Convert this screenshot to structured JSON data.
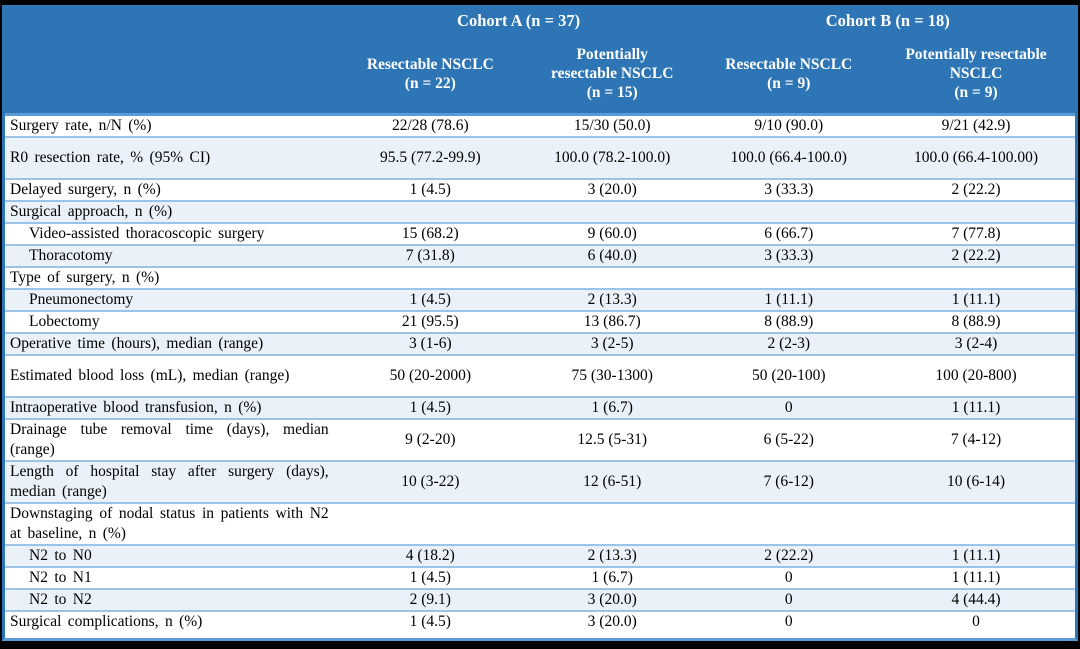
{
  "colors": {
    "header_bg": "#2E75B6",
    "header_text": "#FFFFFF",
    "alt_row_bg": "#EAF1F8",
    "row_divider": "#9CC2E5",
    "outer_side_border": "#2E75B6",
    "header_divider": "#5B9BD5",
    "frame": "#000000",
    "body_text": "#000000"
  },
  "table": {
    "corner_label": "",
    "groups": [
      {
        "label": "Cohort A (n = 37)"
      },
      {
        "label": "Cohort B (n = 18)"
      }
    ],
    "columns": [
      {
        "label": "Resectable NSCLC\n(n = 22)"
      },
      {
        "label": "Potentially\nresectable NSCLC\n(n = 15)"
      },
      {
        "label": "Resectable NSCLC\n(n = 9)"
      },
      {
        "label": "Potentially resectable\nNSCLC\n(n = 9)"
      }
    ],
    "rows": [
      {
        "label": "Surgery rate, n/N (%)",
        "indent": false,
        "tall": false,
        "values": [
          "22/28 (78.6)",
          "15/30 (50.0)",
          "9/10 (90.0)",
          "9/21 (42.9)"
        ]
      },
      {
        "label": "R0 resection rate, % (95% CI)",
        "indent": false,
        "tall": true,
        "values": [
          "95.5 (77.2-99.9)",
          "100.0 (78.2-100.0)",
          "100.0 (66.4-100.0)",
          "100.0 (66.4-100.00)"
        ]
      },
      {
        "label": "Delayed surgery, n (%)",
        "indent": false,
        "tall": false,
        "values": [
          "1 (4.5)",
          "3 (20.0)",
          "3 (33.3)",
          "2 (22.2)"
        ]
      },
      {
        "label": "Surgical approach, n (%)",
        "indent": false,
        "tall": false,
        "values": [
          "",
          "",
          "",
          ""
        ]
      },
      {
        "label": "Video-assisted thoracoscopic surgery",
        "indent": true,
        "tall": false,
        "values": [
          "15 (68.2)",
          "9 (60.0)",
          "6 (66.7)",
          "7 (77.8)"
        ]
      },
      {
        "label": "Thoracotomy",
        "indent": true,
        "tall": false,
        "values": [
          "7 (31.8)",
          "6 (40.0)",
          "3 (33.3)",
          "2 (22.2)"
        ]
      },
      {
        "label": "Type of surgery, n (%)",
        "indent": false,
        "tall": false,
        "values": [
          "",
          "",
          "",
          ""
        ]
      },
      {
        "label": "Pneumonectomy",
        "indent": true,
        "tall": false,
        "values": [
          "1 (4.5)",
          "2 (13.3)",
          "1 (11.1)",
          "1 (11.1)"
        ]
      },
      {
        "label": "Lobectomy",
        "indent": true,
        "tall": false,
        "values": [
          "21 (95.5)",
          "13 (86.7)",
          "8 (88.9)",
          "8 (88.9)"
        ]
      },
      {
        "label": "Operative time (hours), median (range)",
        "indent": false,
        "tall": false,
        "values": [
          "3 (1-6)",
          "3 (2-5)",
          "2 (2-3)",
          "3 (2-4)"
        ]
      },
      {
        "label": "Estimated blood loss (mL), median (range)",
        "indent": false,
        "tall": true,
        "values": [
          "50 (20-2000)",
          "75 (30-1300)",
          "50 (20-100)",
          "100 (20-800)"
        ]
      },
      {
        "label": "Intraoperative blood transfusion, n (%)",
        "indent": false,
        "tall": false,
        "values": [
          "1 (4.5)",
          "1 (6.7)",
          "0",
          "1 (11.1)"
        ]
      },
      {
        "label": "Drainage tube removal time (days), median (range)",
        "indent": false,
        "tall": false,
        "values": [
          "9 (2-20)",
          "12.5 (5-31)",
          "6 (5-22)",
          "7 (4-12)"
        ]
      },
      {
        "label": "Length of hospital stay after surgery (days), median (range)",
        "indent": false,
        "tall": false,
        "values": [
          "10 (3-22)",
          "12 (6-51)",
          "7 (6-12)",
          "10 (6-14)"
        ]
      },
      {
        "label": "Downstaging of nodal status in patients with N2 at baseline, n (%)",
        "indent": false,
        "tall": false,
        "values": [
          "",
          "",
          "",
          ""
        ]
      },
      {
        "label": "N2 to N0",
        "indent": true,
        "tall": false,
        "values": [
          "4 (18.2)",
          "2 (13.3)",
          "2 (22.2)",
          "1 (11.1)"
        ]
      },
      {
        "label": "N2 to N1",
        "indent": true,
        "tall": false,
        "values": [
          "1 (4.5)",
          "1 (6.7)",
          "0",
          "1 (11.1)"
        ]
      },
      {
        "label": "N2 to N2",
        "indent": true,
        "tall": false,
        "values": [
          "2 (9.1)",
          "3 (20.0)",
          "0",
          "4 (44.4)"
        ]
      },
      {
        "label": "Surgical complications, n (%)",
        "indent": false,
        "tall": false,
        "values": [
          "1 (4.5)",
          "3 (20.0)",
          "0",
          "0"
        ]
      }
    ]
  }
}
